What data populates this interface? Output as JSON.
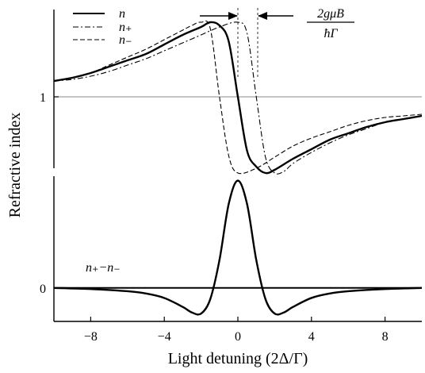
{
  "chart_data": [
    {
      "type": "line",
      "panel": "top",
      "ylabel": "Refractive index",
      "xlim": [
        -10,
        10
      ],
      "ylim": [
        0.55,
        1.55
      ],
      "yticks": [
        {
          "value": 1,
          "label": "1"
        }
      ],
      "reference_line": 1,
      "legend_placement": "top-left",
      "annotation": {
        "numerator": "2gμB",
        "denominator": "ħΓ"
      },
      "series": [
        {
          "name": "n",
          "style": "solid",
          "x": [
            -10,
            -9,
            -8,
            -7,
            -6,
            -5,
            -4,
            -3,
            -2,
            -1.5,
            -1,
            -0.5,
            0,
            0.5,
            1,
            1.5,
            2,
            3,
            4,
            5,
            6,
            7,
            8,
            9,
            10
          ],
          "y": [
            1.1,
            1.12,
            1.15,
            1.19,
            1.23,
            1.27,
            1.33,
            1.39,
            1.44,
            1.47,
            1.45,
            1.35,
            1.0,
            0.66,
            0.56,
            0.52,
            0.54,
            0.61,
            0.67,
            0.73,
            0.77,
            0.81,
            0.84,
            0.86,
            0.88
          ]
        },
        {
          "name": "n₊",
          "style": "dash-dot",
          "x": [
            -10,
            -9,
            -8,
            -7,
            -6,
            -5,
            -4,
            -3,
            -2,
            -1,
            0,
            0.5,
            1,
            1.5,
            2,
            2.5,
            3,
            4,
            5,
            6,
            7,
            8,
            9,
            10
          ],
          "y": [
            1.1,
            1.11,
            1.13,
            1.16,
            1.2,
            1.24,
            1.29,
            1.34,
            1.39,
            1.44,
            1.47,
            1.4,
            1.0,
            0.62,
            0.52,
            0.53,
            0.58,
            0.65,
            0.71,
            0.76,
            0.8,
            0.84,
            0.86,
            0.88
          ]
        },
        {
          "name": "n₋",
          "style": "dashed",
          "x": [
            -10,
            -9,
            -8,
            -7,
            -6,
            -5,
            -4,
            -3,
            -2.5,
            -2,
            -1.5,
            -1,
            -0.5,
            0,
            1,
            2,
            3,
            4,
            5,
            6,
            7,
            8,
            9,
            10
          ],
          "y": [
            1.1,
            1.12,
            1.15,
            1.2,
            1.25,
            1.3,
            1.36,
            1.42,
            1.45,
            1.47,
            1.43,
            1.0,
            0.63,
            0.52,
            0.55,
            0.62,
            0.69,
            0.74,
            0.78,
            0.82,
            0.85,
            0.87,
            0.88,
            0.89
          ]
        }
      ]
    },
    {
      "type": "line",
      "panel": "bottom",
      "xlabel": "Light detuning (2Δ/Γ)",
      "xlim": [
        -10,
        10
      ],
      "ylim": [
        -0.3,
        1.0
      ],
      "xticks": [
        {
          "value": -8,
          "label": "−8"
        },
        {
          "value": -4,
          "label": "−4"
        },
        {
          "value": 0,
          "label": "0"
        },
        {
          "value": 4,
          "label": "4"
        },
        {
          "value": 8,
          "label": "8"
        }
      ],
      "yticks": [
        {
          "value": 0,
          "label": "0"
        }
      ],
      "series_label": "n₊−n₋",
      "series": [
        {
          "style": "solid",
          "x": [
            -10,
            -8,
            -6,
            -5,
            -4,
            -3,
            -2.5,
            -2,
            -1.5,
            -1,
            -0.5,
            0,
            0.5,
            1,
            1.5,
            2,
            2.5,
            3,
            4,
            5,
            6,
            8,
            10
          ],
          "y": [
            0,
            -0.01,
            -0.03,
            -0.05,
            -0.09,
            -0.17,
            -0.22,
            -0.23,
            -0.1,
            0.25,
            0.75,
            0.96,
            0.75,
            0.25,
            -0.1,
            -0.23,
            -0.22,
            -0.17,
            -0.09,
            -0.05,
            -0.03,
            -0.01,
            0
          ]
        }
      ]
    }
  ]
}
